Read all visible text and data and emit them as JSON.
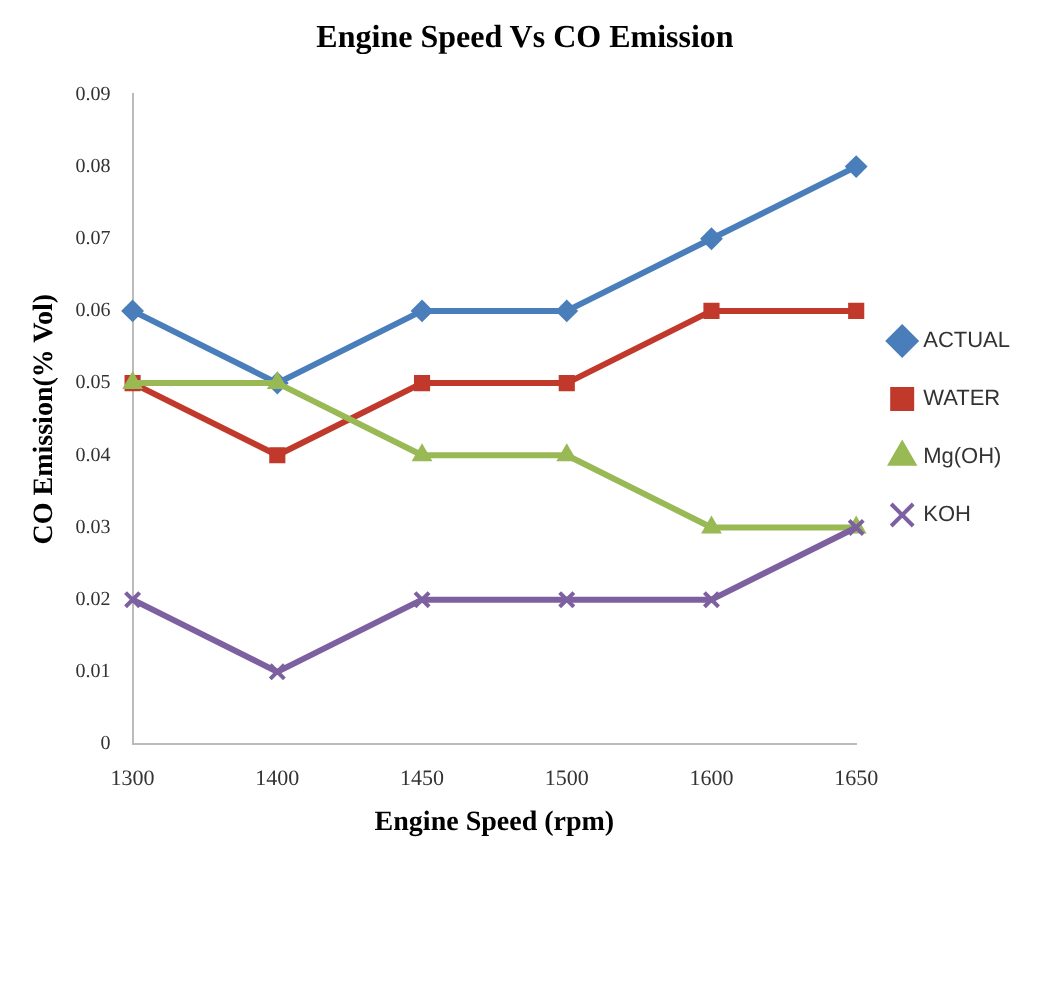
{
  "chart_data": {
    "type": "line",
    "title": "Engine Speed Vs CO Emission",
    "xlabel": "Engine Speed (rpm)",
    "ylabel": "CO Emission(% Vol)",
    "categories": [
      "1300",
      "1400",
      "1450",
      "1500",
      "1600",
      "1650"
    ],
    "series": [
      {
        "name": "ACTUAL",
        "color": "#4a7ebb",
        "marker": "diamond",
        "values": [
          0.06,
          0.05,
          0.06,
          0.06,
          0.07,
          0.08
        ]
      },
      {
        "name": "WATER",
        "color": "#c0392b",
        "marker": "square",
        "values": [
          0.05,
          0.04,
          0.05,
          0.05,
          0.06,
          0.06
        ]
      },
      {
        "name": "Mg(OH)",
        "color": "#98b954",
        "marker": "triangle",
        "values": [
          0.05,
          0.05,
          0.04,
          0.04,
          0.03,
          0.03
        ]
      },
      {
        "name": "KOH",
        "color": "#7d60a0",
        "marker": "cross",
        "values": [
          0.02,
          0.01,
          0.02,
          0.02,
          0.02,
          0.03
        ]
      }
    ],
    "ylim": [
      0,
      0.09
    ],
    "yticks": [
      0,
      0.01,
      0.02,
      0.03,
      0.04,
      0.05,
      0.06,
      0.07,
      0.08,
      0.09
    ],
    "grid": false,
    "legend": "right",
    "line_style": "solid"
  }
}
